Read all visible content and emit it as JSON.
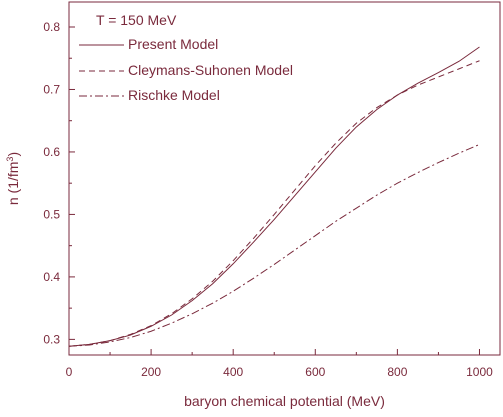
{
  "chart_data": {
    "type": "line",
    "title": "",
    "annotation": "T = 150 MeV",
    "xlabel": "baryon chemical potential (MeV)",
    "ylabel_main": "n (1/fm",
    "ylabel_sup": "3",
    "ylabel_close": ")",
    "xlim": [
      0,
      1050
    ],
    "ylim": [
      0.275,
      0.84
    ],
    "x_ticks": [
      0,
      200,
      400,
      600,
      800,
      1000
    ],
    "x_tick_labels": [
      "0",
      "200",
      "400",
      "600",
      "800",
      "1000"
    ],
    "y_ticks": [
      0.3,
      0.4,
      0.5,
      0.6,
      0.7,
      0.8
    ],
    "y_tick_labels": [
      "0.3",
      "0.4",
      "0.5",
      "0.6",
      "0.7",
      "0.8"
    ],
    "grid": false,
    "legend_position": "top-left",
    "line_color": "#7a2a3c",
    "series": [
      {
        "name": "Present Model",
        "style": "solid",
        "x": [
          0,
          50,
          100,
          150,
          200,
          250,
          300,
          350,
          400,
          450,
          500,
          550,
          600,
          650,
          700,
          750,
          800,
          850,
          900,
          950,
          1000
        ],
        "y": [
          0.289,
          0.292,
          0.298,
          0.307,
          0.321,
          0.339,
          0.362,
          0.389,
          0.421,
          0.456,
          0.492,
          0.53,
          0.568,
          0.606,
          0.64,
          0.668,
          0.691,
          0.71,
          0.727,
          0.745,
          0.768
        ]
      },
      {
        "name": "Cleymans-Suhonen Model",
        "style": "dashed",
        "x": [
          0,
          50,
          100,
          150,
          200,
          250,
          300,
          350,
          400,
          450,
          500,
          550,
          600,
          650,
          700,
          750,
          800,
          850,
          900,
          950,
          1000
        ],
        "y": [
          0.289,
          0.292,
          0.298,
          0.308,
          0.322,
          0.341,
          0.365,
          0.393,
          0.426,
          0.462,
          0.5,
          0.539,
          0.578,
          0.614,
          0.646,
          0.671,
          0.691,
          0.707,
          0.72,
          0.733,
          0.746
        ]
      },
      {
        "name": "Rischke Model",
        "style": "dashdot",
        "x": [
          0,
          50,
          100,
          150,
          200,
          250,
          300,
          350,
          400,
          450,
          500,
          550,
          600,
          650,
          700,
          750,
          800,
          850,
          900,
          950,
          1000
        ],
        "y": [
          0.289,
          0.291,
          0.296,
          0.303,
          0.313,
          0.326,
          0.341,
          0.358,
          0.377,
          0.398,
          0.42,
          0.443,
          0.466,
          0.489,
          0.51,
          0.531,
          0.55,
          0.567,
          0.583,
          0.598,
          0.612
        ]
      }
    ]
  }
}
